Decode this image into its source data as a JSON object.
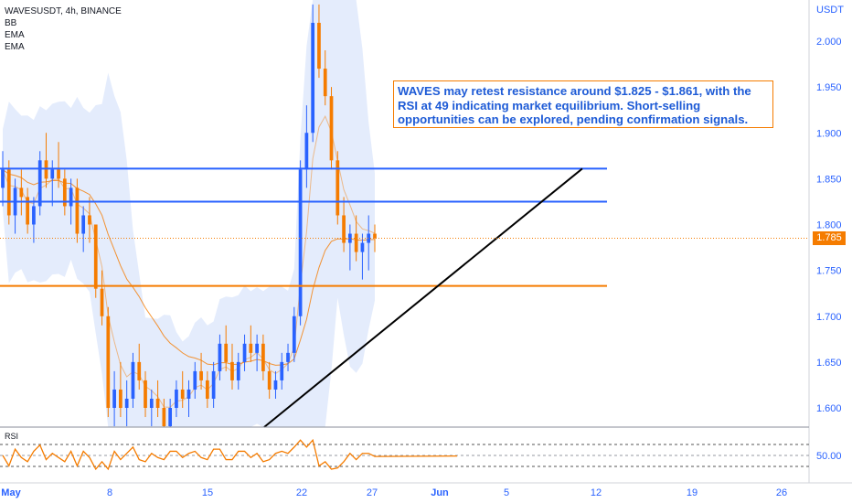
{
  "legend": {
    "symbol": "WAVESUSDT, 4h, BINANCE",
    "indicators": [
      "BB",
      "EMA",
      "EMA"
    ]
  },
  "annotation": {
    "text": "WAVES may retest resistance around $1.825 - $1.861, with the RSI at 49 indicating market equilibrium. Short-selling opportunities can be explored, pending confirmation signals."
  },
  "price_axis": {
    "unit": "USDT",
    "ticks": [
      "2.000",
      "1.950",
      "1.900",
      "1.850",
      "1.800",
      "1.750",
      "1.700",
      "1.650",
      "1.600"
    ],
    "current_price": "1.785"
  },
  "rsi_panel": {
    "label": "RSI",
    "tick": "50.00"
  },
  "time_axis": {
    "ticks": [
      "May",
      "8",
      "15",
      "22",
      "27",
      "Jun",
      "5",
      "12",
      "19",
      "26"
    ]
  },
  "colors": {
    "up": "#2962ff",
    "down": "#f57c00",
    "bb_fill": "#dbe6fb",
    "resistance": "#2962ff",
    "support": "#f57c00",
    "trendline": "#000000"
  },
  "chart_data": {
    "type": "candlestick",
    "timeframe": "4h",
    "price_range": [
      1.58,
      2.04
    ],
    "resistance_levels": [
      1.861,
      1.825
    ],
    "support_level": 1.733,
    "current_price": 1.785,
    "rsi_value": 49,
    "rsi_bands": [
      30,
      50,
      70
    ],
    "trendline": {
      "from_price": 1.58,
      "to_price": 1.861
    },
    "candles": [
      [
        1.84,
        1.88,
        1.82,
        1.86
      ],
      [
        1.86,
        1.87,
        1.8,
        1.81
      ],
      [
        1.81,
        1.85,
        1.79,
        1.84
      ],
      [
        1.84,
        1.86,
        1.81,
        1.83
      ],
      [
        1.83,
        1.84,
        1.79,
        1.8
      ],
      [
        1.8,
        1.83,
        1.78,
        1.82
      ],
      [
        1.82,
        1.88,
        1.81,
        1.87
      ],
      [
        1.87,
        1.9,
        1.84,
        1.85
      ],
      [
        1.85,
        1.87,
        1.82,
        1.86
      ],
      [
        1.86,
        1.89,
        1.84,
        1.85
      ],
      [
        1.85,
        1.86,
        1.81,
        1.82
      ],
      [
        1.82,
        1.85,
        1.8,
        1.84
      ],
      [
        1.84,
        1.85,
        1.78,
        1.79
      ],
      [
        1.79,
        1.82,
        1.77,
        1.81
      ],
      [
        1.81,
        1.83,
        1.78,
        1.8
      ],
      [
        1.8,
        1.8,
        1.72,
        1.73
      ],
      [
        1.73,
        1.75,
        1.69,
        1.7
      ],
      [
        1.7,
        1.71,
        1.59,
        1.6
      ],
      [
        1.6,
        1.64,
        1.58,
        1.62
      ],
      [
        1.62,
        1.65,
        1.59,
        1.6
      ],
      [
        1.6,
        1.63,
        1.58,
        1.61
      ],
      [
        1.61,
        1.66,
        1.6,
        1.65
      ],
      [
        1.65,
        1.67,
        1.62,
        1.63
      ],
      [
        1.63,
        1.64,
        1.59,
        1.6
      ],
      [
        1.6,
        1.62,
        1.58,
        1.61
      ],
      [
        1.61,
        1.63,
        1.59,
        1.6
      ],
      [
        1.6,
        1.61,
        1.57,
        1.58
      ],
      [
        1.58,
        1.61,
        1.57,
        1.6
      ],
      [
        1.6,
        1.63,
        1.59,
        1.62
      ],
      [
        1.62,
        1.64,
        1.6,
        1.61
      ],
      [
        1.61,
        1.63,
        1.59,
        1.62
      ],
      [
        1.62,
        1.65,
        1.61,
        1.64
      ],
      [
        1.64,
        1.66,
        1.62,
        1.63
      ],
      [
        1.63,
        1.64,
        1.6,
        1.61
      ],
      [
        1.61,
        1.65,
        1.6,
        1.64
      ],
      [
        1.64,
        1.68,
        1.63,
        1.67
      ],
      [
        1.67,
        1.69,
        1.64,
        1.65
      ],
      [
        1.65,
        1.67,
        1.62,
        1.63
      ],
      [
        1.63,
        1.66,
        1.62,
        1.65
      ],
      [
        1.65,
        1.68,
        1.64,
        1.67
      ],
      [
        1.67,
        1.69,
        1.65,
        1.66
      ],
      [
        1.66,
        1.68,
        1.64,
        1.67
      ],
      [
        1.67,
        1.68,
        1.63,
        1.64
      ],
      [
        1.64,
        1.65,
        1.61,
        1.62
      ],
      [
        1.62,
        1.64,
        1.61,
        1.63
      ],
      [
        1.63,
        1.66,
        1.62,
        1.65
      ],
      [
        1.65,
        1.67,
        1.64,
        1.66
      ],
      [
        1.66,
        1.71,
        1.65,
        1.7
      ],
      [
        1.7,
        1.87,
        1.69,
        1.86
      ],
      [
        1.86,
        1.93,
        1.84,
        1.9
      ],
      [
        1.9,
        2.04,
        1.89,
        2.02
      ],
      [
        2.02,
        2.04,
        1.96,
        1.97
      ],
      [
        1.97,
        1.99,
        1.93,
        1.94
      ],
      [
        1.94,
        1.95,
        1.86,
        1.87
      ],
      [
        1.87,
        1.88,
        1.8,
        1.81
      ],
      [
        1.81,
        1.83,
        1.77,
        1.78
      ],
      [
        1.78,
        1.8,
        1.75,
        1.79
      ],
      [
        1.79,
        1.81,
        1.76,
        1.77
      ],
      [
        1.77,
        1.79,
        1.74,
        1.78
      ],
      [
        1.78,
        1.81,
        1.75,
        1.79
      ],
      [
        1.79,
        1.8,
        1.77,
        1.785
      ]
    ]
  }
}
